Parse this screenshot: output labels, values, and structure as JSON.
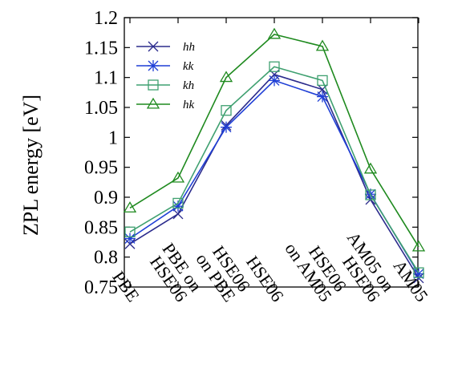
{
  "chart_data": {
    "type": "line",
    "title": "",
    "xlabel": "",
    "ylabel": "ZPL energy [eV]",
    "categories": [
      [
        "PBE"
      ],
      [
        "PBE on",
        "HSE06"
      ],
      [
        "HSE06",
        "on PBE"
      ],
      [
        "HSE06"
      ],
      [
        "HSE06",
        "on AM05"
      ],
      [
        "AM05 on",
        "HSE06"
      ],
      [
        "AM05"
      ]
    ],
    "ylim": [
      0.75,
      1.2
    ],
    "yticks": [
      "0.75",
      "0.8",
      "0.85",
      "0.9",
      "0.95",
      "1",
      "1.05",
      "1.1",
      "1.15",
      "1.2"
    ],
    "legend_position": "top-left",
    "grid": false,
    "series": [
      {
        "name": "hh",
        "marker": "x",
        "color": "#2b2b8c",
        "values": [
          0.822,
          0.872,
          1.02,
          1.105,
          1.08,
          0.896,
          0.765
        ]
      },
      {
        "name": "kk",
        "marker": "star",
        "color": "#1f3fd6",
        "values": [
          0.831,
          0.885,
          1.017,
          1.095,
          1.068,
          0.905,
          0.772
        ]
      },
      {
        "name": "kh",
        "marker": "square",
        "color": "#3fa070",
        "values": [
          0.842,
          0.89,
          1.045,
          1.118,
          1.095,
          0.904,
          0.774
        ]
      },
      {
        "name": "hk",
        "marker": "triangle",
        "color": "#1f8a1f",
        "values": [
          0.882,
          0.932,
          1.1,
          1.172,
          1.152,
          0.947,
          0.817
        ]
      }
    ]
  }
}
